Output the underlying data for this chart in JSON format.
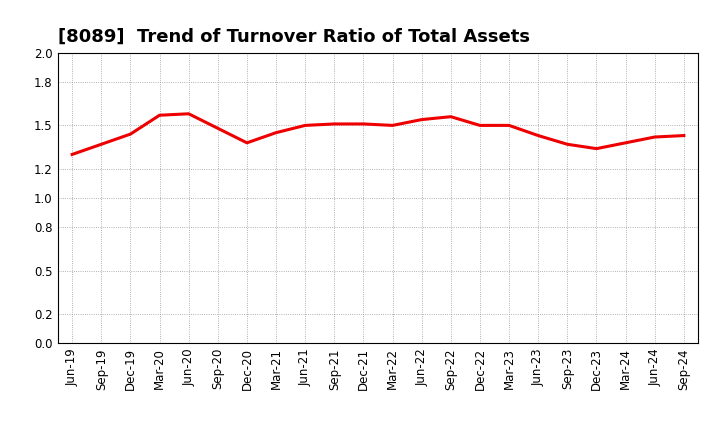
{
  "title": "[8089]  Trend of Turnover Ratio of Total Assets",
  "x_labels": [
    "Jun-19",
    "Sep-19",
    "Dec-19",
    "Mar-20",
    "Jun-20",
    "Sep-20",
    "Dec-20",
    "Mar-21",
    "Jun-21",
    "Sep-21",
    "Dec-21",
    "Mar-22",
    "Jun-22",
    "Sep-22",
    "Dec-22",
    "Mar-23",
    "Jun-23",
    "Sep-23",
    "Dec-23",
    "Mar-24",
    "Jun-24",
    "Sep-24"
  ],
  "y_values": [
    1.3,
    1.37,
    1.44,
    1.57,
    1.58,
    1.48,
    1.38,
    1.45,
    1.5,
    1.51,
    1.51,
    1.5,
    1.54,
    1.56,
    1.5,
    1.5,
    1.43,
    1.37,
    1.34,
    1.38,
    1.42,
    1.43
  ],
  "line_color": "#EE0000",
  "ylim": [
    0.0,
    2.0
  ],
  "yticks": [
    0.0,
    0.2,
    0.5,
    0.8,
    1.0,
    1.2,
    1.5,
    1.8,
    2.0
  ],
  "background_color": "#FFFFFF",
  "grid_color": "#999999",
  "title_fontsize": 13,
  "tick_fontsize": 8.5,
  "line_width": 2.2
}
